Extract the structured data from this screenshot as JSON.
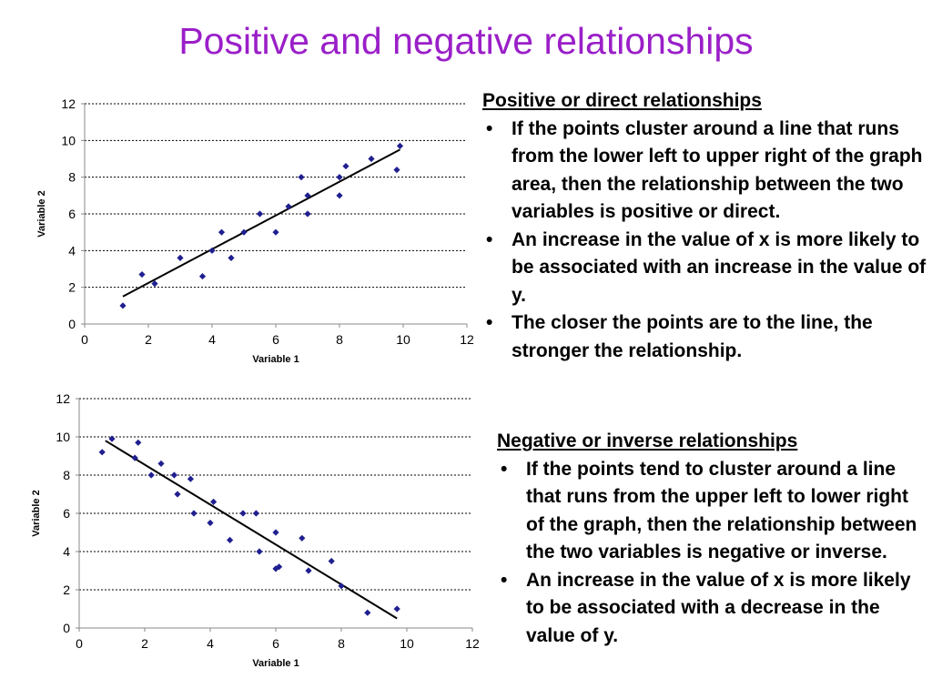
{
  "title": "Positive and negative relationships",
  "chart_data": [
    {
      "type": "scatter",
      "xlabel": "Variable 1",
      "ylabel": "Variable 2",
      "xlim": [
        0,
        12
      ],
      "ylim": [
        0,
        12
      ],
      "xticks": [
        "0",
        "2",
        "4",
        "6",
        "8",
        "10",
        "12"
      ],
      "yticks": [
        "0",
        "2",
        "4",
        "6",
        "8",
        "10",
        "12"
      ],
      "grid": "horizontal dashed",
      "trendline": {
        "x": [
          1.2,
          9.9
        ],
        "y": [
          1.5,
          9.5
        ]
      },
      "x": [
        1.2,
        1.8,
        2.2,
        3.0,
        3.7,
        4.0,
        4.3,
        4.6,
        5.0,
        5.5,
        6.0,
        6.4,
        6.8,
        7.0,
        7.0,
        8.0,
        8.0,
        8.2,
        9.0,
        9.8,
        9.9
      ],
      "y": [
        1.0,
        2.7,
        2.2,
        3.6,
        2.6,
        4.0,
        5.0,
        3.6,
        5.0,
        6.0,
        5.0,
        6.4,
        8.0,
        7.0,
        6.0,
        8.0,
        7.0,
        8.6,
        9.0,
        8.4,
        9.7
      ]
    },
    {
      "type": "scatter",
      "xlabel": "Variable 1",
      "ylabel": "Variable 2",
      "xlim": [
        0,
        12
      ],
      "ylim": [
        0,
        12
      ],
      "xticks": [
        "0",
        "2",
        "4",
        "6",
        "8",
        "10",
        "12"
      ],
      "yticks": [
        "0",
        "2",
        "4",
        "6",
        "8",
        "10",
        "12"
      ],
      "grid": "horizontal dashed",
      "trendline": {
        "x": [
          0.8,
          9.7
        ],
        "y": [
          9.8,
          0.5
        ]
      },
      "x": [
        0.7,
        1.0,
        1.7,
        1.8,
        2.2,
        2.5,
        2.9,
        3.0,
        3.4,
        3.5,
        4.0,
        4.1,
        4.6,
        5.0,
        5.4,
        5.5,
        6.0,
        6.0,
        6.1,
        6.8,
        7.0,
        7.7,
        8.0,
        8.8,
        9.7
      ],
      "y": [
        9.2,
        9.9,
        8.9,
        9.7,
        8.0,
        8.6,
        8.0,
        7.0,
        7.8,
        6.0,
        5.5,
        6.6,
        4.6,
        6.0,
        6.0,
        4.0,
        5.0,
        3.1,
        3.2,
        4.7,
        3.0,
        3.5,
        2.2,
        0.8,
        1.0
      ]
    }
  ],
  "positive": {
    "heading": "Positive or direct relationships",
    "bullet_char": "•",
    "bullets": [
      "If the points cluster around a line that runs from the lower left to upper right of the graph area, then the relationship between the two variables is positive or direct.",
      "An increase in the value of x is more likely to be associated with an increase in the value of y.",
      "The closer the points are to the line, the stronger the relationship."
    ]
  },
  "negative": {
    "heading": "Negative or inverse relationships",
    "bullet_char": "•",
    "bullets": [
      "If the points tend to cluster around a line that runs from the upper left to lower right of the graph, then the relationship between the two variables is negative or inverse.",
      "An increase in the value of x is more likely to be associated with a decrease in the value of y."
    ]
  }
}
